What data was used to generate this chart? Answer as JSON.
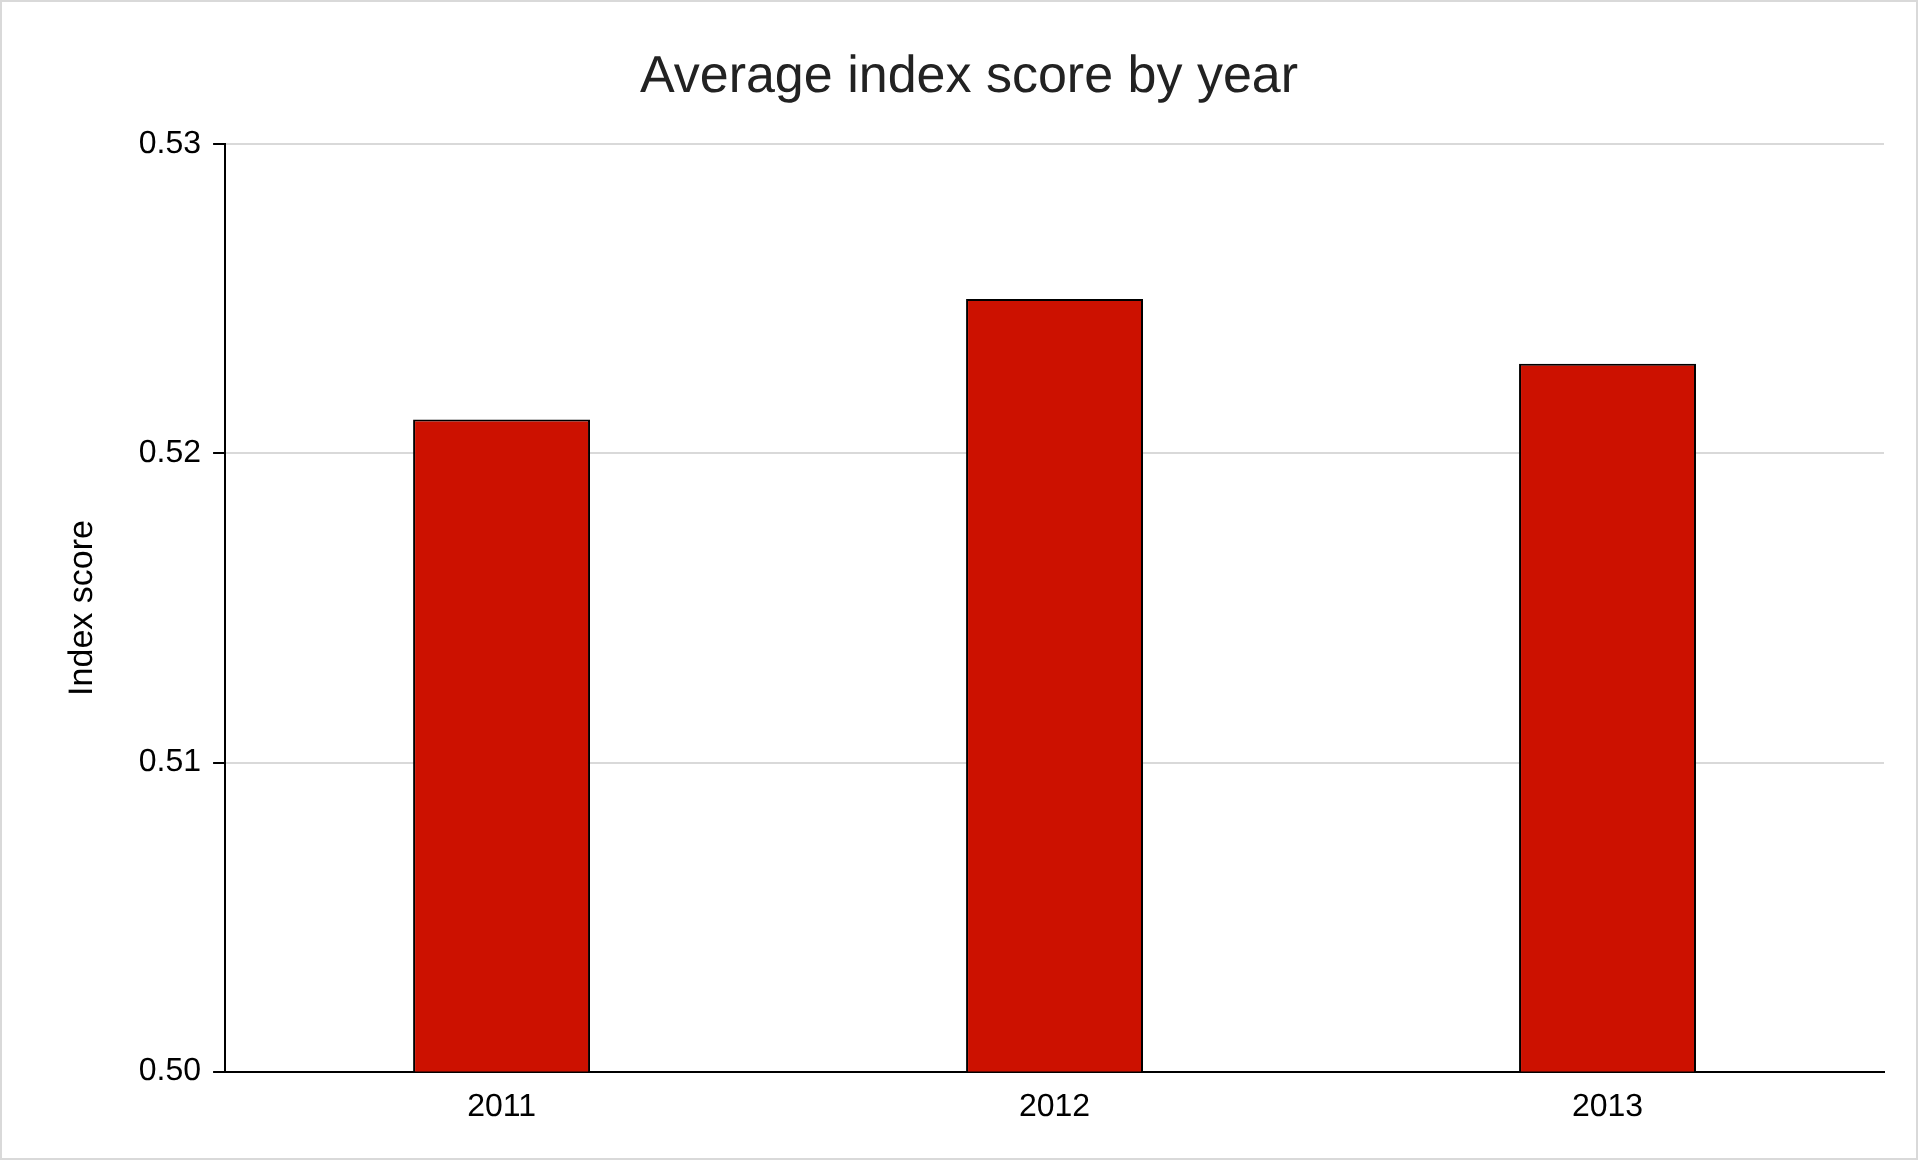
{
  "chart_data": {
    "type": "bar",
    "title": "Average index score by year",
    "ylabel": "Index score",
    "categories": [
      "2011",
      "2012",
      "2013"
    ],
    "values": [
      0.5211,
      0.525,
      0.5229
    ],
    "color": "#cc1100",
    "ylim": [
      0.5,
      0.53
    ],
    "yticks": [
      {
        "value": 0.5,
        "label": "0.50"
      },
      {
        "value": 0.51,
        "label": "0.51"
      },
      {
        "value": 0.52,
        "label": "0.52"
      },
      {
        "value": 0.53,
        "label": "0.53"
      }
    ],
    "grid": "y"
  }
}
